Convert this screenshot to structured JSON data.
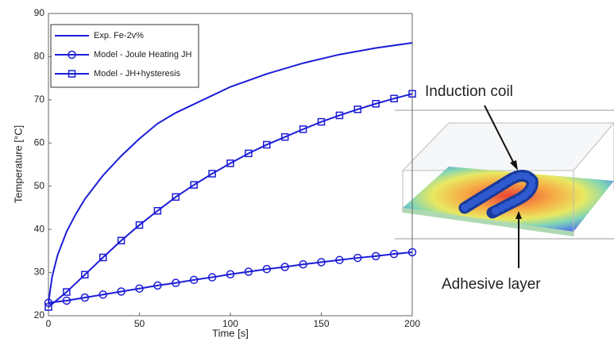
{
  "chart_data": {
    "type": "line",
    "xlabel": "Time [s]",
    "ylabel": "Temperature [°C]",
    "xlim": [
      0,
      200
    ],
    "xticks": [
      0,
      50,
      100,
      150,
      200
    ],
    "ylim": [
      20,
      90
    ],
    "yticks": [
      20,
      30,
      40,
      50,
      60,
      70,
      80,
      90
    ],
    "legend": "upper left",
    "series": [
      {
        "name": "Exp. Fe-2v%",
        "color": "#1c1cd8",
        "marker": "none",
        "x": [
          0,
          2,
          5,
          10,
          15,
          20,
          30,
          40,
          50,
          60,
          70,
          80,
          90,
          100,
          120,
          140,
          160,
          180,
          200
        ],
        "values": [
          23,
          29,
          34,
          39.5,
          43.5,
          47,
          52.5,
          57,
          61,
          64.5,
          67,
          69,
          71,
          73,
          76,
          78.5,
          80.5,
          82,
          83.2
        ]
      },
      {
        "name": "Model - Joule Heating JH",
        "color": "#1c1cd8",
        "marker": "circle",
        "x": [
          0,
          10,
          20,
          30,
          40,
          50,
          60,
          70,
          80,
          90,
          100,
          110,
          120,
          130,
          140,
          150,
          160,
          170,
          180,
          190,
          200
        ],
        "values": [
          23,
          23.5,
          24.2,
          24.9,
          25.6,
          26.3,
          27,
          27.6,
          28.3,
          28.9,
          29.6,
          30.2,
          30.8,
          31.3,
          31.9,
          32.4,
          32.9,
          33.4,
          33.8,
          34.3,
          34.7
        ]
      },
      {
        "name": "Model - JH+hysteresis",
        "color": "#1c1cd8",
        "marker": "square",
        "x": [
          0,
          10,
          20,
          30,
          40,
          50,
          60,
          70,
          80,
          90,
          100,
          110,
          120,
          130,
          140,
          150,
          160,
          170,
          180,
          190,
          200
        ],
        "values": [
          22,
          25.5,
          29.5,
          33.5,
          37.4,
          41,
          44.3,
          47.5,
          50.3,
          52.9,
          55.3,
          57.6,
          59.6,
          61.4,
          63.2,
          64.9,
          66.4,
          67.8,
          69.1,
          70.3,
          71.4
        ]
      }
    ],
    "annotations": [
      "Induction coil",
      "Adhesive layer"
    ]
  }
}
